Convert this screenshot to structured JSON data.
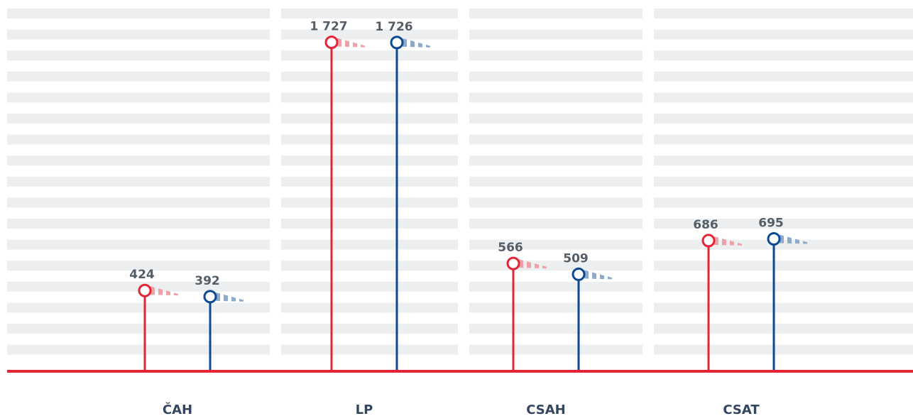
{
  "chart_data": {
    "type": "lollipop",
    "categories": [
      "ČAH",
      "LP",
      "CSAH",
      "CSAT"
    ],
    "series": [
      {
        "color": "#e42535",
        "values": [
          424,
          1727,
          566,
          686
        ],
        "value_labels": [
          "424",
          "1 727",
          "566",
          "686"
        ]
      },
      {
        "color": "#0b4a92",
        "values": [
          392,
          1726,
          509,
          695
        ],
        "value_labels": [
          "392",
          "1 726",
          "509",
          "695"
        ]
      }
    ],
    "ylim": [
      0,
      1800
    ]
  }
}
